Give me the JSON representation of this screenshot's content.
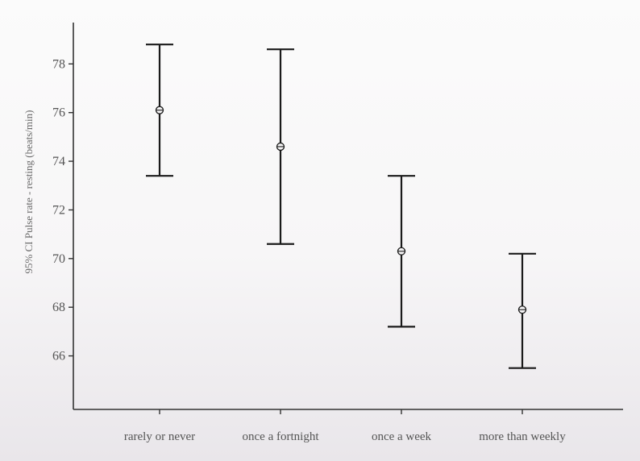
{
  "chart_data": {
    "type": "errorbar",
    "ylabel": "95% CI Pulse rate - resting (beats/min)",
    "xlabel": "",
    "categories": [
      "rarely or never",
      "once a fortnight",
      "once a week",
      "more than weekly"
    ],
    "means": [
      76.1,
      74.6,
      70.3,
      67.9
    ],
    "lower": [
      73.4,
      70.6,
      67.2,
      65.5
    ],
    "upper": [
      78.8,
      78.6,
      73.4,
      70.2
    ],
    "yticks": [
      66,
      68,
      70,
      72,
      74,
      76,
      78
    ],
    "ylim": [
      63.8,
      79.7
    ],
    "grid": false,
    "colors": {
      "mark": "#1a1a1a",
      "axis": "#333333",
      "text": "#555555"
    }
  }
}
